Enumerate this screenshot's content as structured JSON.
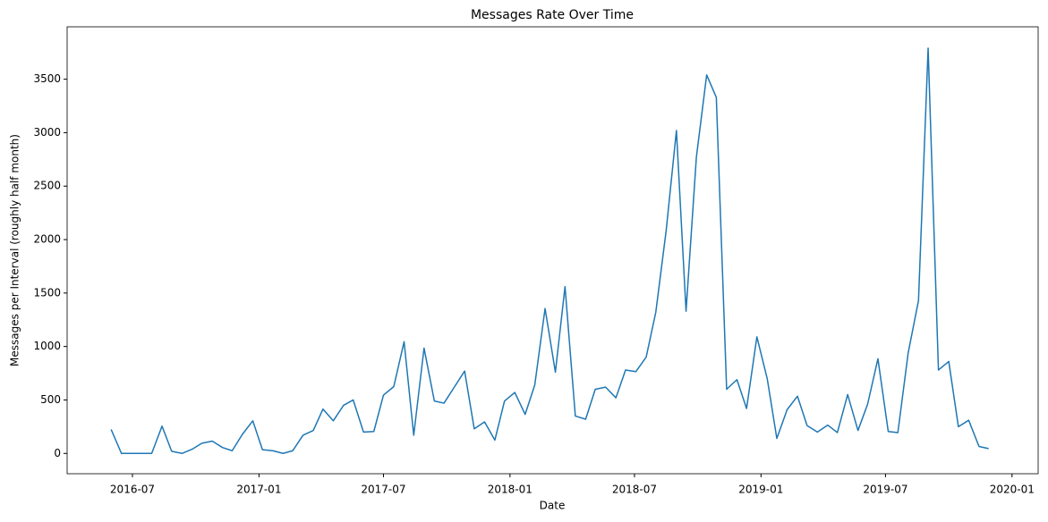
{
  "chart_data": {
    "type": "line",
    "title": "Messages Rate Over Time",
    "xlabel": "Date",
    "ylabel": "Messages per Interval (roughly half month)",
    "x": [
      "2016-05-31",
      "2016-06-15",
      "2016-06-30",
      "2016-07-14",
      "2016-07-29",
      "2016-08-13",
      "2016-08-27",
      "2016-09-11",
      "2016-09-26",
      "2016-10-10",
      "2016-10-25",
      "2016-11-09",
      "2016-11-23",
      "2016-12-08",
      "2016-12-23",
      "2017-01-06",
      "2017-01-21",
      "2017-02-05",
      "2017-02-19",
      "2017-03-06",
      "2017-03-21",
      "2017-04-04",
      "2017-04-19",
      "2017-05-04",
      "2017-05-18",
      "2017-06-02",
      "2017-06-17",
      "2017-07-01",
      "2017-07-16",
      "2017-07-31",
      "2017-08-14",
      "2017-08-29",
      "2017-09-13",
      "2017-09-27",
      "2017-10-12",
      "2017-10-27",
      "2017-11-10",
      "2017-11-25",
      "2017-12-10",
      "2017-12-24",
      "2018-01-08",
      "2018-01-23",
      "2018-02-06",
      "2018-02-21",
      "2018-03-08",
      "2018-03-22",
      "2018-04-06",
      "2018-04-21",
      "2018-05-05",
      "2018-05-20",
      "2018-06-04",
      "2018-06-18",
      "2018-07-03",
      "2018-07-18",
      "2018-08-01",
      "2018-08-16",
      "2018-08-31",
      "2018-09-14",
      "2018-09-29",
      "2018-10-14",
      "2018-10-28",
      "2018-11-12",
      "2018-11-27",
      "2018-12-11",
      "2018-12-26",
      "2019-01-10",
      "2019-01-24",
      "2019-02-08",
      "2019-02-23",
      "2019-03-09",
      "2019-03-24",
      "2019-04-08",
      "2019-04-22",
      "2019-05-07",
      "2019-05-22",
      "2019-06-05",
      "2019-06-20",
      "2019-07-05",
      "2019-07-19",
      "2019-08-03",
      "2019-08-18",
      "2019-09-01",
      "2019-09-16",
      "2019-10-01",
      "2019-10-15",
      "2019-10-30",
      "2019-11-14",
      "2019-11-28"
    ],
    "series": [
      {
        "name": "Messages",
        "color": "#1f77b4",
        "values": [
          224,
          0,
          0,
          0,
          0,
          255,
          20,
          0,
          40,
          95,
          115,
          55,
          25,
          180,
          305,
          35,
          25,
          0,
          25,
          170,
          215,
          415,
          305,
          450,
          500,
          200,
          205,
          545,
          625,
          1045,
          170,
          985,
          490,
          470,
          620,
          770,
          230,
          295,
          125,
          490,
          570,
          365,
          640,
          1355,
          760,
          1560,
          350,
          320,
          600,
          620,
          520,
          780,
          765,
          900,
          1320,
          2080,
          3020,
          1330,
          2770,
          3540,
          3330,
          600,
          690,
          420,
          1090,
          700,
          140,
          410,
          535,
          260,
          200,
          265,
          195,
          550,
          215,
          460,
          885,
          205,
          195,
          940,
          1430,
          3790,
          780,
          860,
          250,
          310,
          65,
          45
        ]
      }
    ],
    "xlim": [
      "2016-03-28",
      "2020-02-08"
    ],
    "xticks": [
      {
        "value": "2016-07-01",
        "label": "2016-07"
      },
      {
        "value": "2017-01-01",
        "label": "2017-01"
      },
      {
        "value": "2017-07-01",
        "label": "2017-07"
      },
      {
        "value": "2018-01-01",
        "label": "2018-01"
      },
      {
        "value": "2018-07-01",
        "label": "2018-07"
      },
      {
        "value": "2019-01-01",
        "label": "2019-01"
      },
      {
        "value": "2019-07-01",
        "label": "2019-07"
      },
      {
        "value": "2020-01-01",
        "label": "2020-01"
      }
    ],
    "ylim": [
      -190,
      3990
    ],
    "yticks": [
      0,
      500,
      1000,
      1500,
      2000,
      2500,
      3000,
      3500
    ],
    "grid": false
  }
}
